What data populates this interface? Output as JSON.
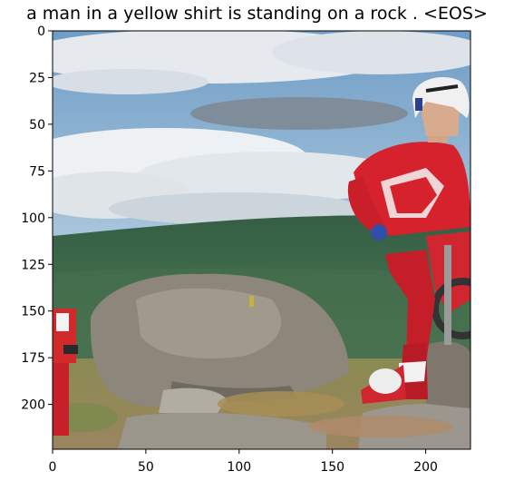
{
  "title": "a man in a yellow shirt is standing on a rock . <EOS>",
  "axes": {
    "x_ticks": [
      0,
      50,
      100,
      150,
      200
    ],
    "y_ticks": [
      0,
      25,
      50,
      75,
      100,
      125,
      150,
      175,
      200
    ],
    "x_range": [
      0,
      224
    ],
    "y_range": [
      0,
      224
    ]
  },
  "image": {
    "content": "photo: motocross rider in red and white gear with white helmet beside large rocks, green hills and cloudy blue sky behind"
  },
  "colors": {
    "sky": "#8fb6d6",
    "cloud": "#e8ecef",
    "hill": "#3e6a48",
    "rock": "#8a8478",
    "grass": "#8c7a4a",
    "rider_red": "#d01f2a",
    "helmet": "#f2f2f2"
  }
}
